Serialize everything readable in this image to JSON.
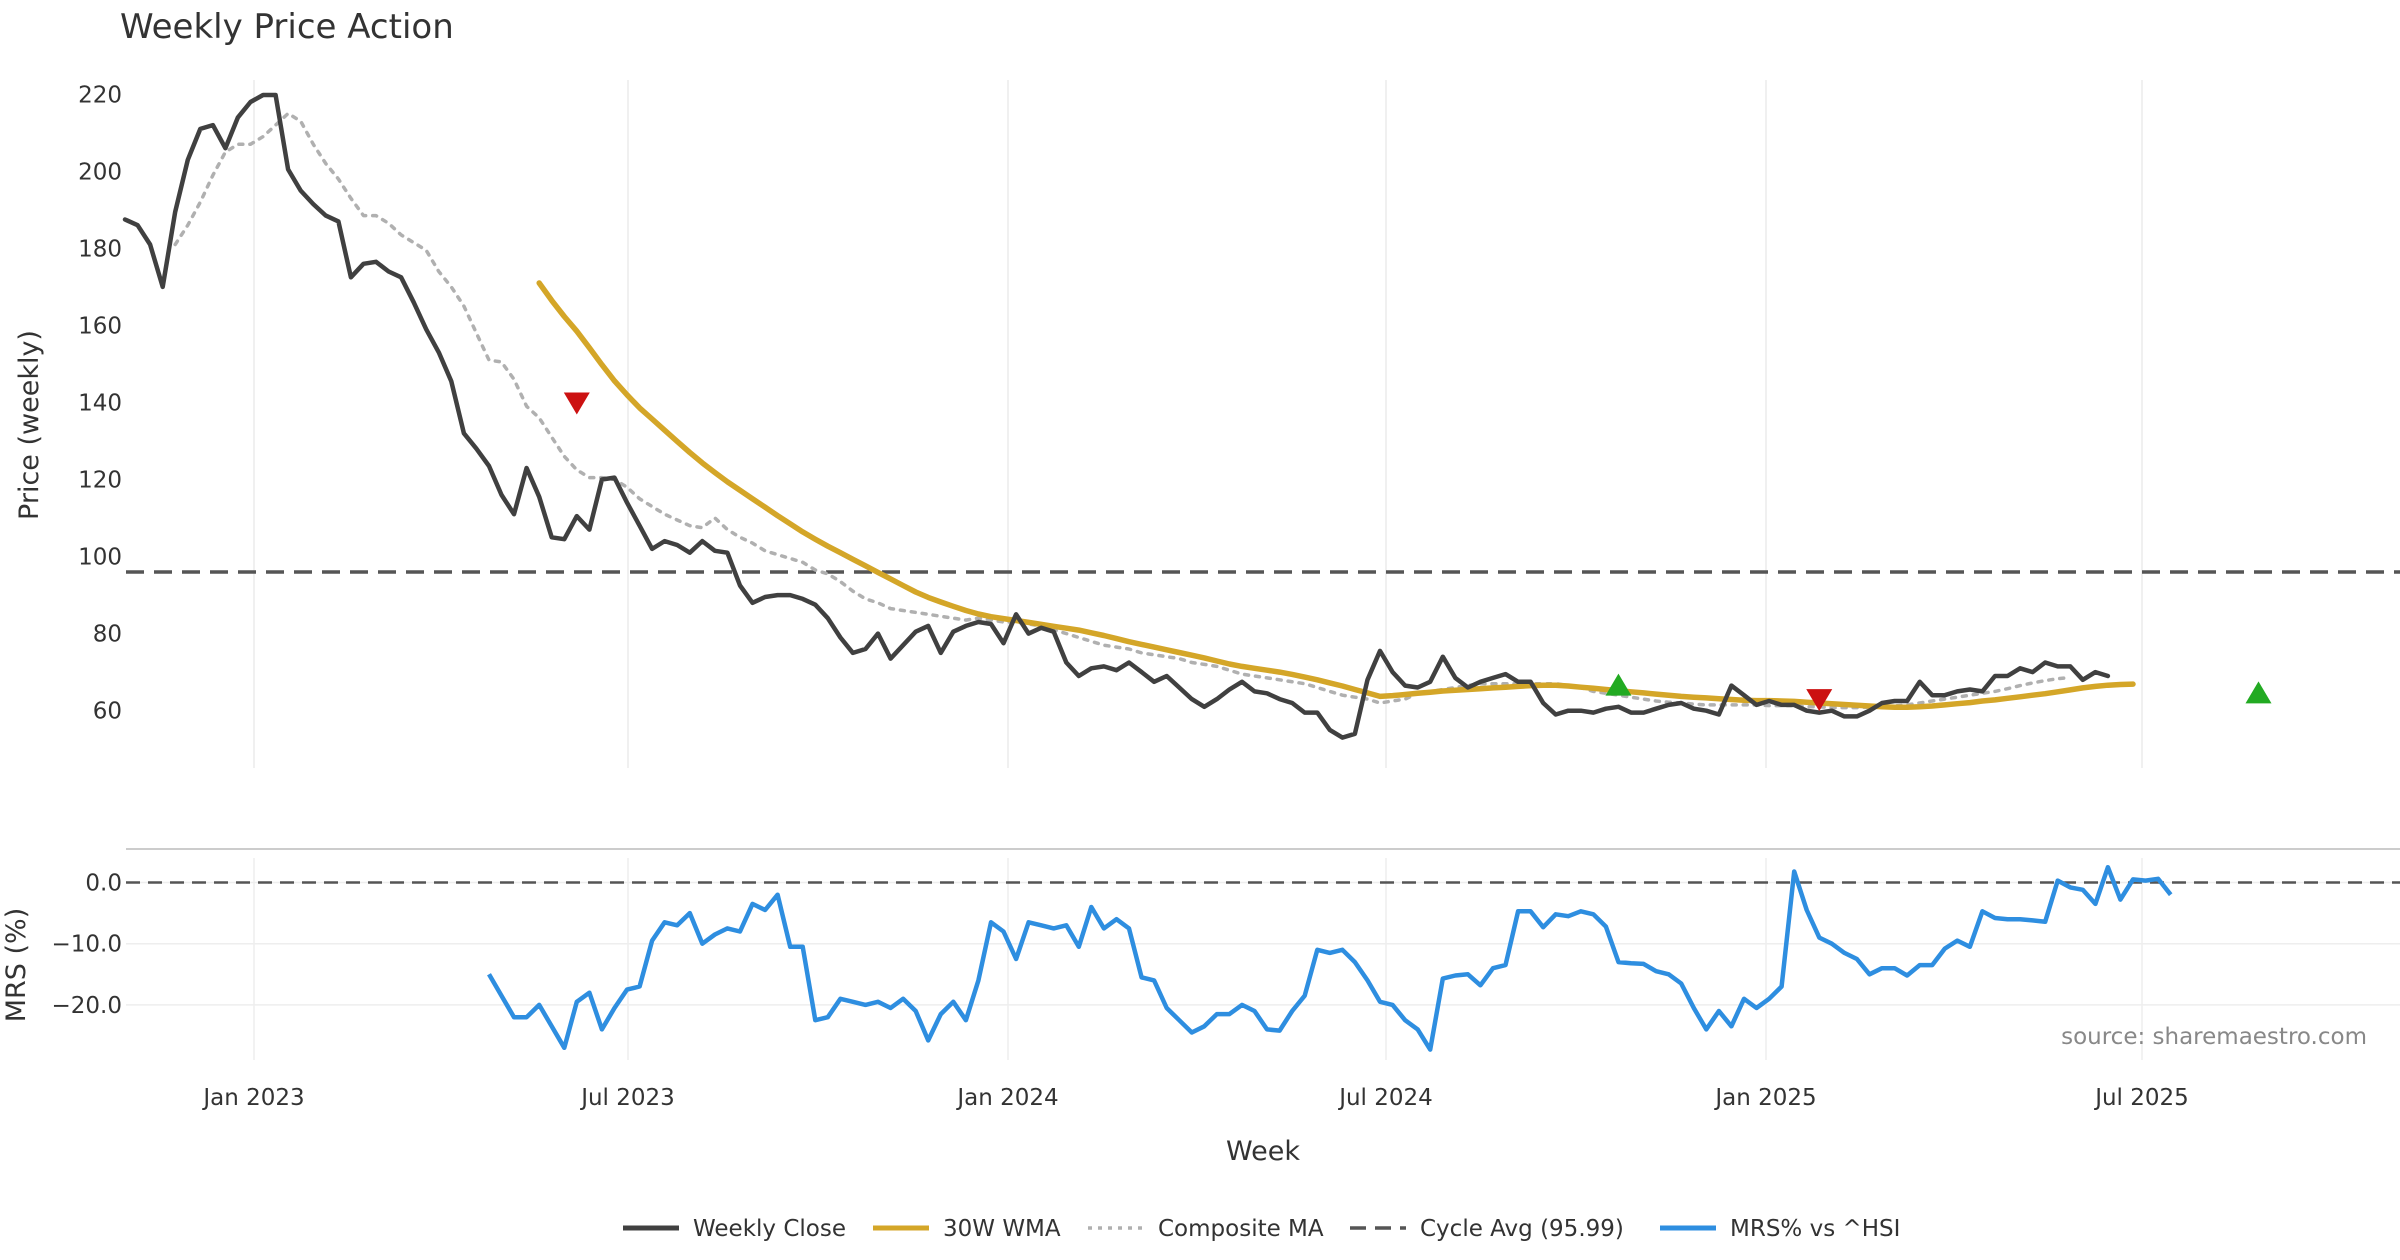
{
  "chart_data": {
    "type": "line",
    "title": "Weekly Price Action",
    "xlabel": "Week",
    "source_note": "source: sharemaestro.com",
    "x_ticks": [
      "Jan 2023",
      "Jul 2023",
      "Jan 2024",
      "Jul 2024",
      "Jan 2025",
      "Jul 2025"
    ],
    "price_panel": {
      "ylabel": "Price (weekly)",
      "ylim": [
        42,
        225
      ],
      "y_ticks": [
        "220",
        "200",
        "180",
        "160",
        "140",
        "120",
        "100",
        "80",
        "60"
      ],
      "y_tick_values": [
        220,
        200,
        180,
        160,
        140,
        120,
        100,
        80,
        60
      ],
      "cycle_avg": 95.99,
      "series": [
        {
          "name": "Weekly Close",
          "color": "#404040",
          "start_week": 0,
          "values": [
            187.5,
            186,
            181,
            170,
            189.5,
            203,
            211,
            212,
            206,
            214,
            218,
            219.8,
            219.8,
            200.5,
            195,
            191.5,
            188.5,
            187,
            172.5,
            176,
            176.5,
            174,
            172.5,
            166,
            159,
            153,
            145.5,
            132,
            128,
            123.5,
            116,
            111,
            123,
            115.5,
            105,
            104.5,
            110.5,
            107,
            120,
            120.5,
            114,
            108,
            102,
            104,
            103,
            101,
            104,
            101.5,
            101,
            92.5,
            88,
            89.5,
            90,
            90,
            89,
            87.5,
            84,
            79,
            75,
            76,
            80,
            73.5,
            77,
            80.5,
            82,
            75,
            80.5,
            82,
            83,
            82.5,
            77.5,
            85,
            80,
            81.5,
            80.5,
            72.5,
            69,
            71,
            71.5,
            70.5,
            72.5,
            70,
            67.5,
            69,
            66,
            63,
            61,
            63,
            65.5,
            67.5,
            65,
            64.5,
            63,
            62,
            59.5,
            59.5,
            55,
            53,
            54,
            68,
            75.5,
            70,
            66.5,
            66,
            67.5,
            74,
            68.5,
            66,
            67.5,
            68.5,
            69.5,
            67.5,
            67.5,
            62,
            59,
            60,
            60,
            59.5,
            60.5,
            61,
            59.5,
            59.5,
            60.5,
            61.5,
            62,
            60.5,
            60,
            59,
            66.5,
            64,
            61.5,
            62.5,
            61.5,
            61.5,
            60,
            59.5,
            60,
            58.5,
            58.5,
            60,
            62,
            62.5,
            62.5,
            67.5,
            64,
            64,
            65,
            65.5,
            65,
            69,
            69,
            71,
            70,
            72.5,
            71.5,
            71.5,
            68,
            70,
            69
          ]
        },
        {
          "name": "30W WMA",
          "color": "#d4a628",
          "start_week": 33,
          "values": [
            171,
            166.5,
            162.3,
            158.5,
            154.2,
            149.8,
            145.6,
            142,
            138.6,
            135.7,
            132.8,
            129.9,
            127,
            124.3,
            121.8,
            119.4,
            117.2,
            115,
            112.8,
            110.6,
            108.5,
            106.4,
            104.5,
            102.7,
            101,
            99.3,
            97.6,
            95.9,
            94.2,
            92.5,
            90.8,
            89.4,
            88.2,
            87.1,
            86,
            85.1,
            84.4,
            83.9,
            83.4,
            82.9,
            82.4,
            81.9,
            81.4,
            80.9,
            80.2,
            79.5,
            78.7,
            77.9,
            77.2,
            76.5,
            75.8,
            75.1,
            74.4,
            73.7,
            72.9,
            72.1,
            71.5,
            71,
            70.5,
            70,
            69.4,
            68.7,
            68,
            67.2,
            66.4,
            65.5,
            64.6,
            63.7,
            63.9,
            64.2,
            64.5,
            64.8,
            65.1,
            65.3,
            65.5,
            65.7,
            65.9,
            66.1,
            66.3,
            66.5,
            66.6,
            66.6,
            66.4,
            66.1,
            65.8,
            65.5,
            65.2,
            64.9,
            64.6,
            64.3,
            64,
            63.7,
            63.5,
            63.3,
            63.1,
            62.9,
            62.7,
            62.6,
            62.6,
            62.5,
            62.4,
            62.2,
            62,
            61.8,
            61.6,
            61.4,
            61.2,
            61,
            60.9,
            60.9,
            61,
            61.2,
            61.5,
            61.8,
            62.1,
            62.5,
            62.8,
            63.2,
            63.6,
            64,
            64.4,
            64.9,
            65.4,
            65.9,
            66.3,
            66.6,
            66.8,
            66.9
          ]
        },
        {
          "name": "Composite MA",
          "color": "#b0b0b0",
          "start_week": 4,
          "values": [
            181,
            186,
            192,
            199,
            205,
            207,
            207,
            209,
            212,
            215,
            213,
            207,
            202,
            198,
            193,
            188.5,
            188.5,
            186.5,
            183.5,
            181.5,
            179.5,
            174,
            170,
            165,
            158,
            151,
            150.5,
            146,
            139,
            136,
            131,
            126,
            122.5,
            120.5,
            120.5,
            120,
            118,
            115,
            113,
            111,
            109.5,
            108,
            107.5,
            110,
            107,
            105,
            103.5,
            101.5,
            100.5,
            99.5,
            98.5,
            96.5,
            95.5,
            93.5,
            91,
            89,
            88,
            86.5,
            86,
            85.5,
            85,
            84.5,
            84,
            83.5,
            84,
            83.5,
            83,
            83,
            82.5,
            82,
            81,
            80,
            79,
            78,
            77,
            76.5,
            76,
            75,
            74.5,
            74,
            73.5,
            72.5,
            72,
            71.5,
            70.5,
            69.5,
            69,
            68.5,
            68,
            67.5,
            67,
            66,
            65,
            64,
            63.5,
            63,
            62,
            62.5,
            63,
            64.5,
            65,
            65.5,
            66,
            66.5,
            67,
            67,
            67,
            67,
            67,
            67,
            67,
            66.5,
            66,
            65,
            64.5,
            64,
            63.5,
            63,
            62.5,
            62.2,
            62,
            61.7,
            61.5,
            61.5,
            61.5,
            61.5,
            61.5,
            61.3,
            61.3,
            61.3,
            61,
            61,
            60.8,
            60.8,
            60.8,
            60.9,
            61,
            61.2,
            61.5,
            62,
            62.5,
            63,
            63.5,
            64,
            64.5,
            65,
            65.7,
            66.5,
            67.2,
            67.8,
            68.3,
            68.6
          ]
        }
      ],
      "signals": [
        {
          "type": "sell",
          "week": 36,
          "price": 140,
          "color": "#cc1111"
        },
        {
          "type": "buy",
          "week": 119,
          "price": 66.5,
          "color": "#22aa22"
        },
        {
          "type": "sell",
          "week": 135,
          "price": 63,
          "color": "#cc1111"
        },
        {
          "type": "buy",
          "week": 170,
          "price": 64.5,
          "color": "#22aa22"
        }
      ]
    },
    "mrs_panel": {
      "ylabel": "MRS (%)",
      "ylim": [
        -29,
        4
      ],
      "y_ticks": [
        "0.0",
        "−10.0",
        "−20.0"
      ],
      "y_tick_values": [
        0,
        -10,
        -20
      ],
      "zero_line": 0,
      "series": [
        {
          "name": "MRS% vs ^HSI",
          "color": "#2e8ee0",
          "start_week": 29,
          "values": [
            -15,
            -18.5,
            -22,
            -22,
            -20,
            -23.5,
            -27,
            -19.5,
            -18,
            -24,
            -20.5,
            -17.5,
            -17,
            -9.5,
            -6.5,
            -7,
            -5,
            -10,
            -8.5,
            -7.5,
            -8,
            -3.5,
            -4.5,
            -2,
            -10.5,
            -10.5,
            -22.5,
            -22,
            -19,
            -19.5,
            -20,
            -19.5,
            -20.5,
            -19,
            -21,
            -25.8,
            -21.5,
            -19.5,
            -22.5,
            -16,
            -6.5,
            -8,
            -12.5,
            -6.5,
            -7,
            -7.5,
            -7,
            -10.5,
            -4,
            -7.5,
            -6,
            -7.5,
            -15.5,
            -16,
            -20.5,
            -22.5,
            -24.5,
            -23.5,
            -21.5,
            -21.5,
            -20,
            -21,
            -24,
            -24.2,
            -21,
            -18.5,
            -11,
            -11.5,
            -11,
            -13,
            -16,
            -19.5,
            -20,
            -22.5,
            -24,
            -27.3,
            -15.7,
            -15.2,
            -15,
            -16.8,
            -14,
            -13.5,
            -4.7,
            -4.7,
            -7.3,
            -5.2,
            -5.5,
            -4.7,
            -5.2,
            -7.2,
            -13,
            -13.2,
            -13.3,
            -14.5,
            -15,
            -16.5,
            -20.5,
            -24,
            -21,
            -23.5,
            -19,
            -20.5,
            -19,
            -17,
            1.8,
            -4.5,
            -9,
            -10,
            -11.5,
            -12.5,
            -15,
            -14,
            -14,
            -15.2,
            -13.5,
            -13.5,
            -10.8,
            -9.5,
            -10.5,
            -4.7,
            -5.8,
            -6,
            -6,
            -6.2,
            -6.4,
            0.3,
            -0.8,
            -1.2,
            -3.5,
            2.5,
            -2.8,
            0.5,
            0.3,
            0.6,
            -2
          ]
        }
      ]
    },
    "legend": [
      {
        "label": "Weekly Close",
        "color": "#404040",
        "style": "solid"
      },
      {
        "label": "30W WMA",
        "color": "#d4a628",
        "style": "solid"
      },
      {
        "label": "Composite MA",
        "color": "#b0b0b0",
        "style": "dotted"
      },
      {
        "label": "Cycle Avg (95.99)",
        "color": "#555555",
        "style": "dashed"
      },
      {
        "label": "MRS% vs ^HSI",
        "color": "#2e8ee0",
        "style": "solid"
      }
    ]
  }
}
